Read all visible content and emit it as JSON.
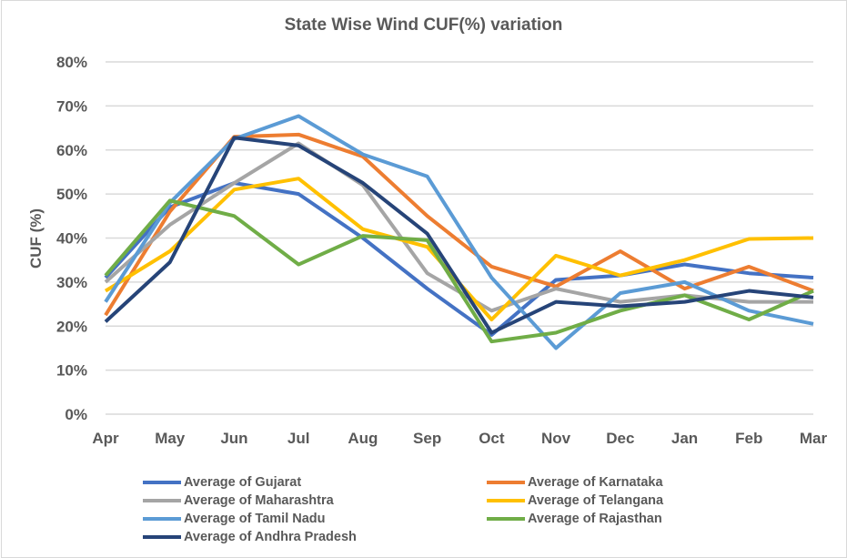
{
  "chart_data": {
    "type": "line",
    "title": "State Wise Wind CUF(%) variation",
    "xlabel": "",
    "ylabel": "CUF (%)",
    "ylim": [
      0,
      80
    ],
    "yticks": [
      "0%",
      "10%",
      "20%",
      "30%",
      "40%",
      "50%",
      "60%",
      "70%",
      "80%"
    ],
    "grid": true,
    "legend": "bottom",
    "categories": [
      "Apr",
      "May",
      "Jun",
      "Jul",
      "Aug",
      "Sep",
      "Oct",
      "Nov",
      "Dec",
      "Jan",
      "Feb",
      "Mar"
    ],
    "series": [
      {
        "name": "Average of Gujarat",
        "color": "#4472c4",
        "values": [
          31,
          47,
          52.5,
          50,
          40,
          28.5,
          18,
          30.5,
          31.5,
          34,
          32,
          31
        ]
      },
      {
        "name": "Average of Karnataka",
        "color": "#ed7d31",
        "values": [
          22.5,
          46,
          63,
          63.5,
          58.5,
          45,
          33.5,
          29,
          37,
          28.5,
          33.5,
          28
        ]
      },
      {
        "name": "Average of Maharashtra",
        "color": "#a5a5a5",
        "values": [
          30,
          43,
          52.5,
          61.5,
          52,
          32,
          23.5,
          28.5,
          25.5,
          27,
          25.5,
          25.5
        ]
      },
      {
        "name": "Average of Telangana",
        "color": "#ffc000",
        "values": [
          28,
          37,
          51,
          53.5,
          42,
          38,
          21.5,
          36,
          31.5,
          35,
          39.8,
          40
        ]
      },
      {
        "name": "Average of Tamil Nadu",
        "color": "#5b9bd5",
        "values": [
          25.5,
          48,
          62.5,
          67.7,
          59,
          54,
          31,
          15,
          27.5,
          30,
          23.5,
          20.5
        ]
      },
      {
        "name": "Average of Rajasthan",
        "color": "#70ad47",
        "values": [
          31.5,
          48.5,
          45,
          34,
          40.5,
          39.5,
          16.5,
          18.5,
          23.5,
          27,
          21.5,
          28
        ]
      },
      {
        "name": "Average of Andhra Pradesh",
        "color": "#264478",
        "values": [
          21,
          34.5,
          62.8,
          61,
          52.5,
          41,
          18.5,
          25.5,
          24.5,
          25.5,
          28,
          26.5
        ]
      }
    ]
  }
}
